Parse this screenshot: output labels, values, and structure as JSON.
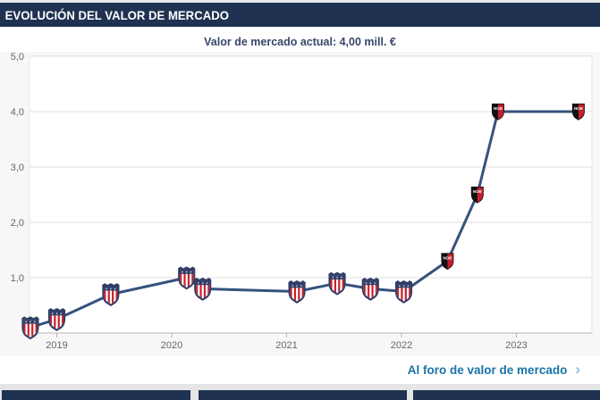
{
  "header": {
    "title": "EVOLUCIÓN DEL VALOR DE MERCADO"
  },
  "subtitle": "Valor de mercado actual: 4,00 mill. €",
  "footer_link": {
    "label": "Al foro de valor de mercado",
    "chevron": "›"
  },
  "colors": {
    "header_navy": "#1f3251",
    "line": "#36527e",
    "grid": "#e0e0e0",
    "axis": "#b5b5b5",
    "tick_label": "#666666",
    "plot_bg": "#ffffff",
    "chart_bg": "#f7f7f7",
    "link_blue": "#1a74a8",
    "chevron_blue": "#8cc1e0",
    "crest_navy": "#303e68",
    "crest_red": "#c8222e",
    "nob_black": "#111111",
    "nob_red": "#c81f2d"
  },
  "icons": {
    "striped_crest": "striped-crest-icon",
    "nob_crest": "nob-crest-icon",
    "chevron": "chevron-right-icon"
  },
  "chart_data": {
    "type": "line",
    "title": "Evolución del valor de mercado",
    "current_value_label": "4,00 mill. €",
    "xlabel": "",
    "ylabel": "",
    "ylim": [
      0,
      5
    ],
    "xlim": [
      2018.7,
      2023.72
    ],
    "grid": "horizontal",
    "legend": "none",
    "x": [
      2018.77,
      2019.0,
      2019.47,
      2020.13,
      2020.27,
      2021.09,
      2021.44,
      2021.73,
      2022.02,
      2022.4,
      2022.66,
      2022.84,
      2023.54
    ],
    "values": [
      0.1,
      0.25,
      0.7,
      1.0,
      0.8,
      0.75,
      0.9,
      0.8,
      0.75,
      1.3,
      2.5,
      4.0,
      4.0
    ],
    "markers": [
      "striped",
      "striped",
      "striped",
      "striped",
      "striped",
      "striped",
      "striped",
      "striped",
      "striped",
      "nob",
      "nob",
      "nob",
      "nob"
    ],
    "marker_clubs": {
      "striped": "red-white striped crest",
      "nob": "Newell's Old Boys crest (NOB)"
    },
    "y_ticks": [
      {
        "value": 1,
        "label": "1,0"
      },
      {
        "value": 2,
        "label": "2,0"
      },
      {
        "value": 3,
        "label": "3,0"
      },
      {
        "value": 4,
        "label": "4,0"
      },
      {
        "value": 5,
        "label": "5,0"
      }
    ],
    "x_ticks": [
      {
        "value": 2019,
        "label": "2019"
      },
      {
        "value": 2020,
        "label": "2020"
      },
      {
        "value": 2021,
        "label": "2021"
      },
      {
        "value": 2022,
        "label": "2022"
      },
      {
        "value": 2023,
        "label": "2023"
      }
    ]
  }
}
